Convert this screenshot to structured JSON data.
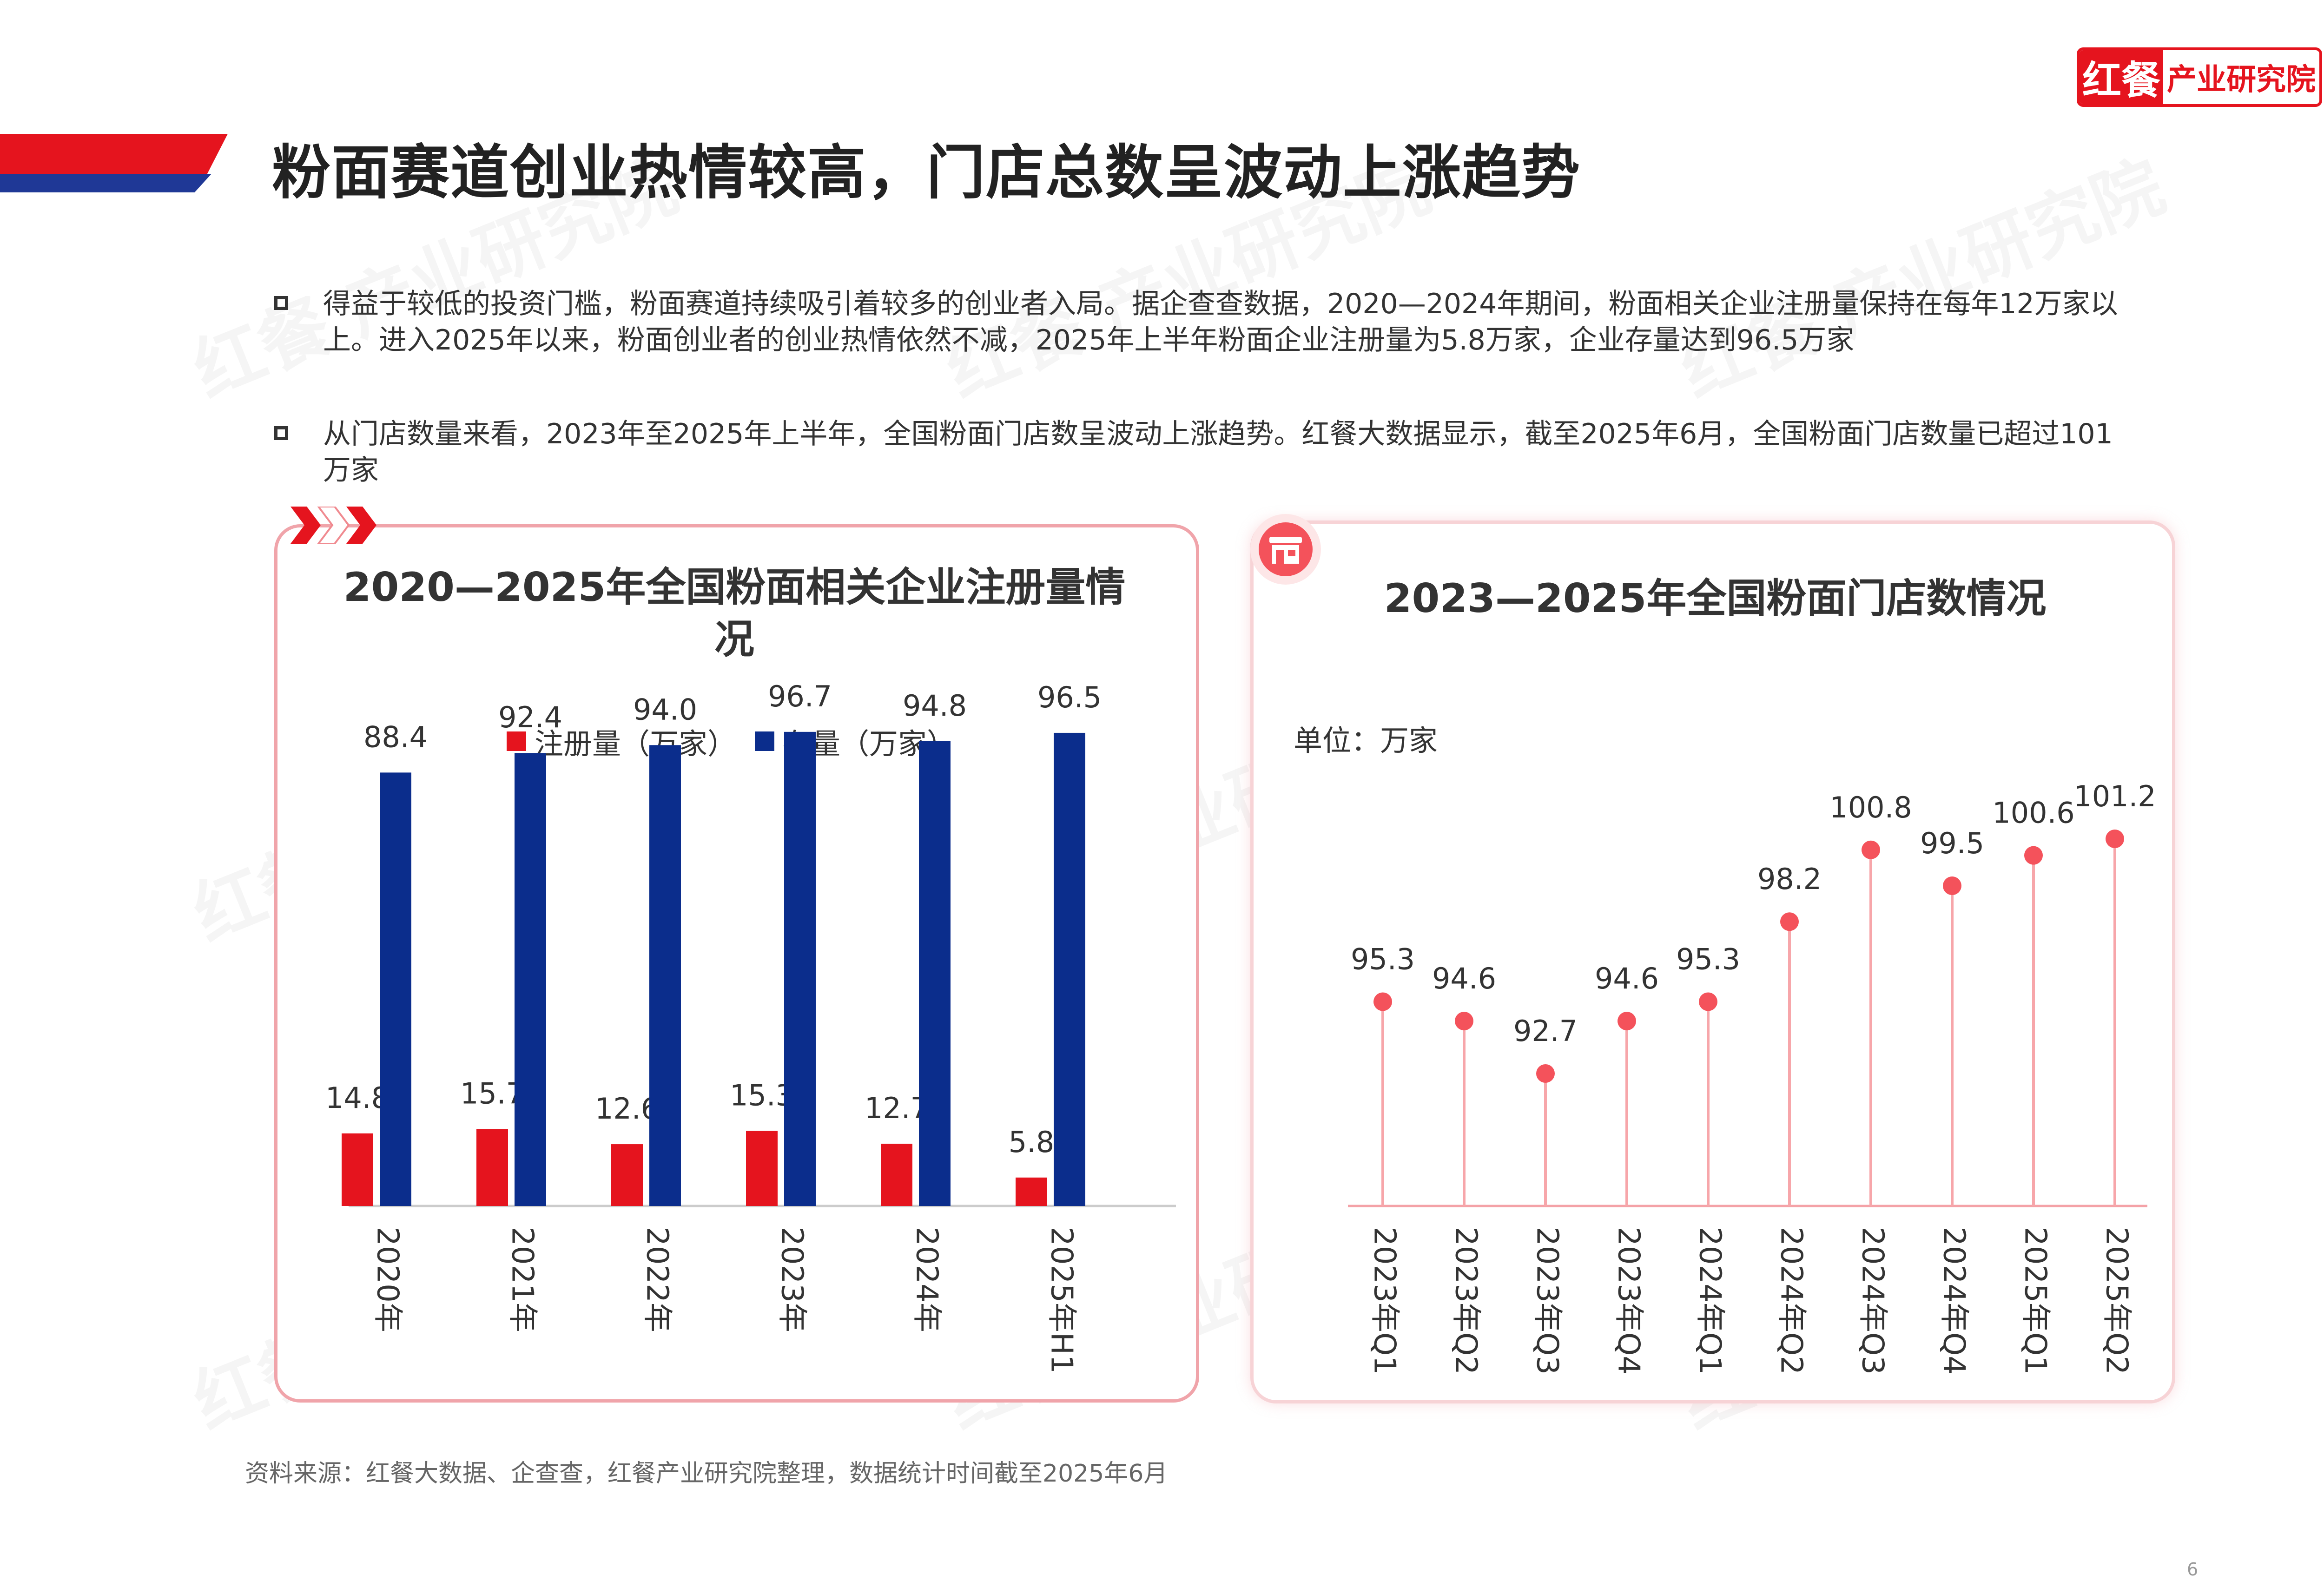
{
  "page": {
    "title": "粉面赛道创业热情较高，门店总数呈波动上涨趋势",
    "logo_main": "红餐",
    "logo_sub": "产业研究院",
    "watermark": "红餐 产业研究院",
    "page_number": "6",
    "source": "资料来源：红餐大数据、企查查，红餐产业研究院整理，数据统计时间截至2025年6月"
  },
  "bullets": [
    "得益于较低的投资门槛，粉面赛道持续吸引着较多的创业者入局。据企查查数据，2020—2024年期间，粉面相关企业注册量保持在每年12万家以上。进入2025年以来，粉面创业者的创业热情依然不减，2025年上半年粉面企业注册量为5.8万家，企业存量达到96.5万家",
    "从门店数量来看，2023年至2025年上半年，全国粉面门店数呈波动上涨趋势。红餐大数据显示，截至2025年6月，全国粉面门店数量已超过101万家"
  ],
  "chart_data": [
    {
      "type": "bar",
      "title": "2020—2025年全国粉面相关企业注册量情况",
      "categories": [
        "2020年",
        "2021年",
        "2022年",
        "2023年",
        "2024年",
        "2025年H1"
      ],
      "series": [
        {
          "name": "注册量（万家）",
          "color": "#e5141e",
          "values": [
            14.8,
            15.7,
            12.6,
            15.3,
            12.7,
            5.8
          ]
        },
        {
          "name": "存量（万家）",
          "color": "#0b2d8c",
          "values": [
            88.4,
            92.4,
            94.0,
            96.7,
            94.8,
            96.5
          ]
        }
      ],
      "legend": "top",
      "grid": false,
      "ylim": [
        0,
        100
      ]
    },
    {
      "type": "line",
      "style": "lollipop",
      "title": "2023—2025年全国粉面门店数情况",
      "unit_label": "单位：万家",
      "categories": [
        "2023年Q1",
        "2023年Q2",
        "2023年Q3",
        "2023年Q4",
        "2024年Q1",
        "2024年Q2",
        "2024年Q3",
        "2024年Q4",
        "2025年Q1",
        "2025年Q2"
      ],
      "values": [
        95.3,
        94.6,
        92.7,
        94.6,
        95.3,
        98.2,
        100.8,
        99.5,
        100.6,
        101.2
      ],
      "color": "#f4525b",
      "stem_color": "#f7a6aa",
      "grid": false,
      "ylim": [
        85,
        102
      ]
    }
  ]
}
